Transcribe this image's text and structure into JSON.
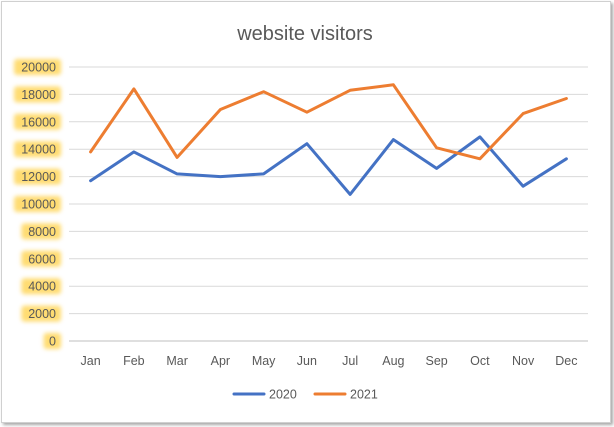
{
  "chart_data": {
    "type": "line",
    "title": "website visitors",
    "categories": [
      "Jan",
      "Feb",
      "Mar",
      "Apr",
      "May",
      "Jun",
      "Jul",
      "Aug",
      "Sep",
      "Oct",
      "Nov",
      "Dec"
    ],
    "yticks": [
      "0",
      "2000",
      "4000",
      "6000",
      "8000",
      "10000",
      "12000",
      "14000",
      "16000",
      "18000",
      "20000"
    ],
    "ylim": [
      0,
      20000
    ],
    "grid": true,
    "legend": "bottom",
    "series": [
      {
        "name": "2020",
        "color": "#4472C4",
        "values": [
          11700,
          13800,
          12200,
          12000,
          12200,
          14400,
          10700,
          14700,
          12600,
          14900,
          11300,
          13300
        ]
      },
      {
        "name": "2021",
        "color": "#ED7D31",
        "values": [
          13800,
          18400,
          13400,
          16900,
          18200,
          16700,
          18300,
          18700,
          14100,
          13300,
          16600,
          17700
        ]
      }
    ],
    "tick_highlight_color": "#FFC000"
  }
}
